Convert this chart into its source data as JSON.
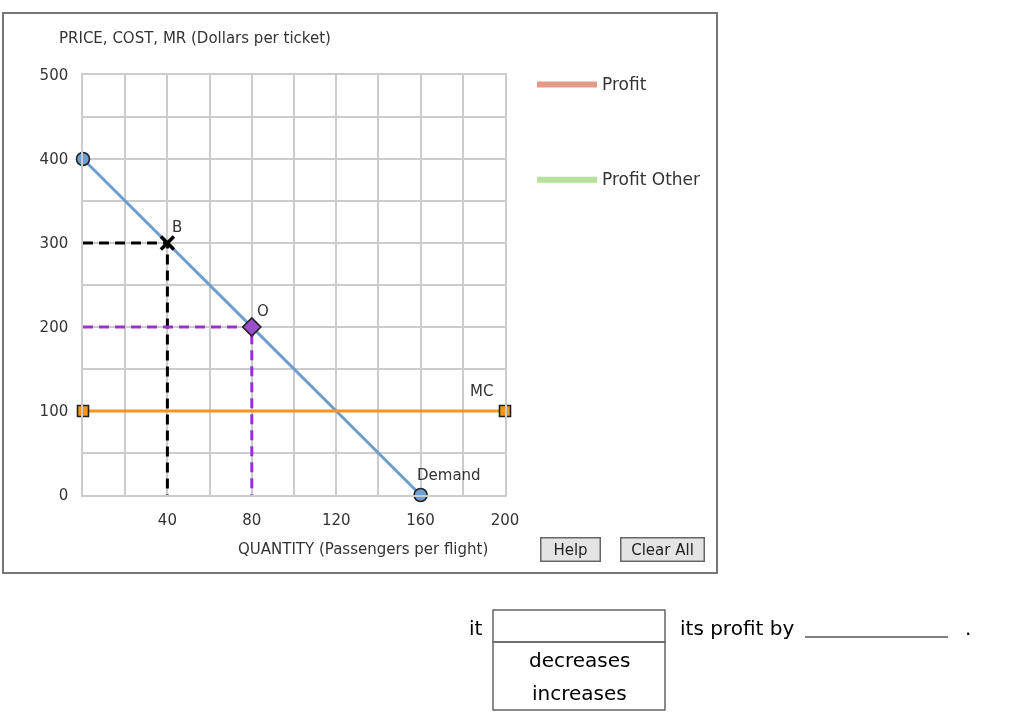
{
  "chart_data": {
    "type": "line",
    "ylabel": "PRICE, COST, MR (Dollars per ticket)",
    "xlabel": "QUANTITY (Passengers per flight)",
    "xlim": [
      0,
      200
    ],
    "ylim": [
      0,
      500
    ],
    "xticks": [
      {
        "value": 0,
        "label": null
      },
      {
        "value": 20,
        "label": null
      },
      40,
      {
        "value": 60,
        "label": null
      },
      80,
      {
        "value": 100,
        "label": null
      },
      120,
      {
        "value": 140,
        "label": null
      },
      160,
      {
        "value": 180,
        "label": null
      },
      200
    ],
    "yticks": [
      0,
      {
        "value": 50,
        "label": null
      },
      100,
      {
        "value": 150,
        "label": null
      },
      200,
      {
        "value": 250,
        "label": null
      },
      300,
      {
        "value": 350,
        "label": null
      },
      400,
      {
        "value": 450,
        "label": null
      },
      500
    ],
    "grid": true,
    "legend": "top right",
    "series": [
      {
        "name": "Demand",
        "color": "#6c9fcf",
        "x": [
          0,
          160
        ],
        "values": [
          400,
          0
        ],
        "marker": "circle",
        "line_style": "solid"
      },
      {
        "name": "MC",
        "color": "#f7941d",
        "x": [
          0,
          200
        ],
        "values": [
          100,
          100
        ],
        "marker": "square",
        "line_style": "solid"
      },
      {
        "color": "#000000",
        "x": [
          0,
          40,
          40
        ],
        "values": [
          300,
          300,
          0
        ],
        "marker": "none",
        "line_style": "dashed"
      },
      {
        "name": "B",
        "type": "scatter",
        "color": "#000000",
        "x": [
          40
        ],
        "values": [
          300
        ],
        "marker": "cross"
      },
      {
        "color": "#9b30d0",
        "x": [
          0,
          80,
          80
        ],
        "values": [
          200,
          200,
          0
        ],
        "marker": "none",
        "line_style": "dashed"
      },
      {
        "name": "O",
        "type": "scatter",
        "color": "#9b4dca",
        "x": [
          80
        ],
        "values": [
          200
        ],
        "marker": "diamond"
      },
      {
        "name": "Profit",
        "type": "area",
        "color": "#e59a85"
      },
      {
        "name": "Profit Other",
        "type": "area",
        "color": "#b5e39b"
      }
    ],
    "annotations": [
      "Help",
      "Clear All",
      "it",
      "decreases",
      "increases",
      "its profit by",
      "."
    ]
  }
}
